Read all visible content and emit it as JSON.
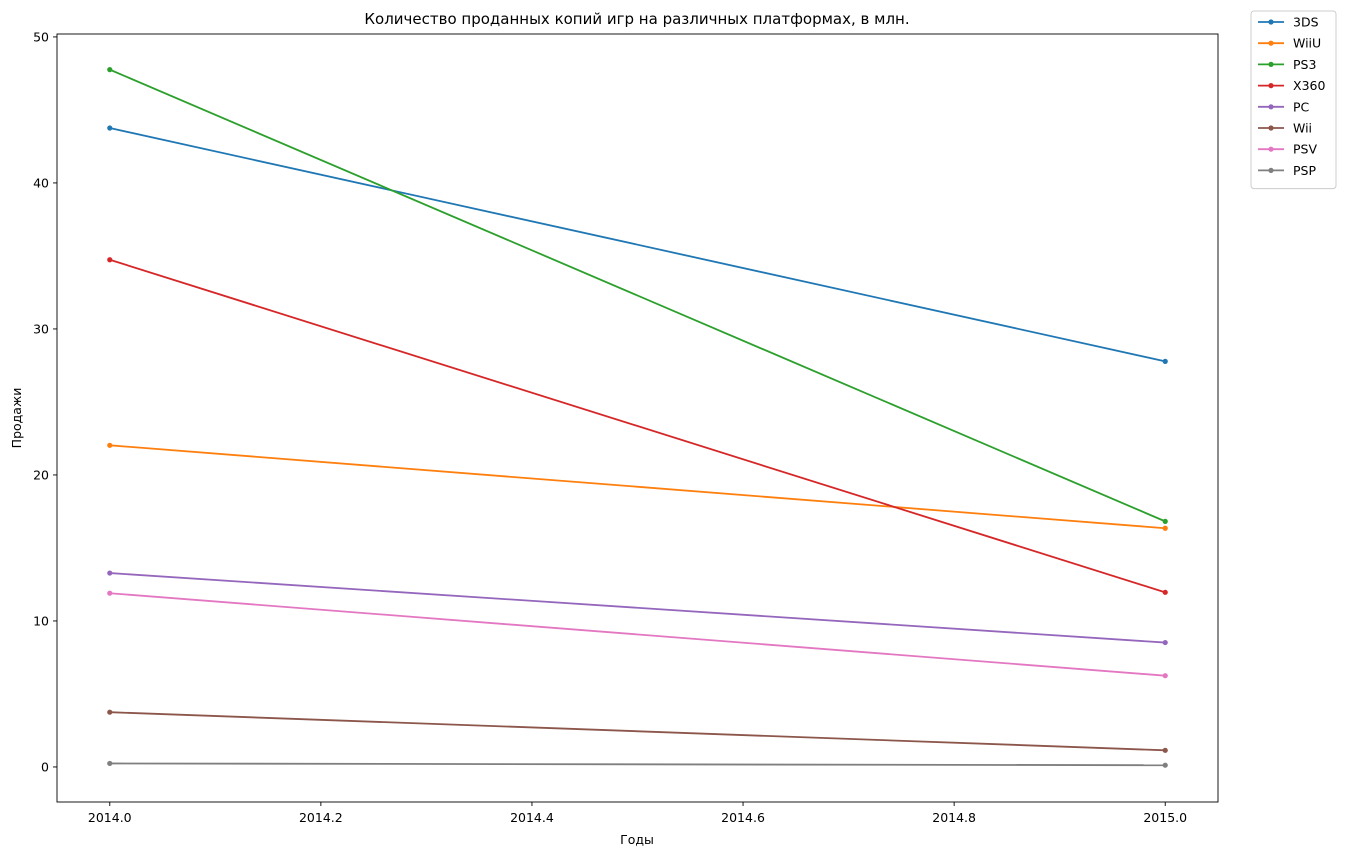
{
  "chart_data": {
    "type": "line",
    "title": "Количество проданных копий игр на различных платформах, в млн.",
    "xlabel": "Годы",
    "ylabel": "Продажи",
    "xlim": [
      2013.95,
      2015.05
    ],
    "ylim": [
      -2.4,
      50.2
    ],
    "xticks": [
      2014.0,
      2014.2,
      2014.4,
      2014.6,
      2014.8,
      2015.0
    ],
    "xtick_labels": [
      "2014.0",
      "2014.2",
      "2014.4",
      "2014.6",
      "2014.8",
      "2015.0"
    ],
    "yticks": [
      0,
      10,
      20,
      30,
      40,
      50
    ],
    "ytick_labels": [
      "0",
      "10",
      "20",
      "30",
      "40",
      "50"
    ],
    "grid": false,
    "legend_position": "outside-top-right",
    "x": [
      2014,
      2015
    ],
    "series": [
      {
        "name": "3DS",
        "color": "#1f77b4",
        "values": [
          43.76,
          27.78
        ]
      },
      {
        "name": "WiiU",
        "color": "#ff7f0e",
        "values": [
          22.03,
          16.35
        ]
      },
      {
        "name": "PS3",
        "color": "#2ca02c",
        "values": [
          47.76,
          16.82
        ]
      },
      {
        "name": "X360",
        "color": "#d62728",
        "values": [
          34.74,
          11.96
        ]
      },
      {
        "name": "PC",
        "color": "#9467bd",
        "values": [
          13.28,
          8.52
        ]
      },
      {
        "name": "Wii",
        "color": "#8c564b",
        "values": [
          3.75,
          1.14
        ]
      },
      {
        "name": "PSV",
        "color": "#e377c2",
        "values": [
          11.9,
          6.25
        ]
      },
      {
        "name": "PSP",
        "color": "#7f7f7f",
        "values": [
          0.24,
          0.12
        ]
      }
    ]
  }
}
